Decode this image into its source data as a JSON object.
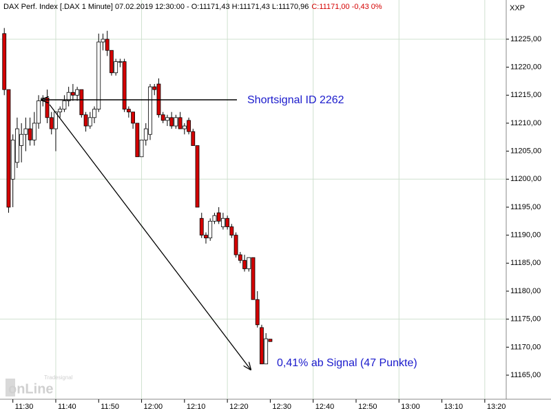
{
  "chart_data": {
    "type": "candlestick",
    "title": "DAX Perf. Index [.DAX 1 Minute] 07.02.2019 12:30:00 - O:11171,43 H:11171,43 L:11170,96",
    "title_close": "C:11171,00 -0,43 0%",
    "corner_label": "XXP",
    "watermark": "Tradesignal",
    "watermark_logo": "onLine",
    "annotations": [
      "Shortsignal ID 2262",
      "0,41% ab Signal (47 Punkte)"
    ],
    "grid": true,
    "up_color": "#ffffff",
    "down_color": "#d40000",
    "x": [
      "11:28",
      "11:29",
      "11:30",
      "11:31",
      "11:32",
      "11:33",
      "11:34",
      "11:35",
      "11:36",
      "11:37",
      "11:38",
      "11:39",
      "11:40",
      "11:41",
      "11:42",
      "11:43",
      "11:44",
      "11:45",
      "11:46",
      "11:47",
      "11:48",
      "11:49",
      "11:50",
      "11:51",
      "11:52",
      "11:53",
      "11:54",
      "11:55",
      "11:56",
      "11:57",
      "11:58",
      "11:59",
      "12:00",
      "12:01",
      "12:02",
      "12:03",
      "12:04",
      "12:05",
      "12:06",
      "12:07",
      "12:08",
      "12:09",
      "12:10",
      "12:11",
      "12:12",
      "12:13",
      "12:14",
      "12:15",
      "12:16",
      "12:17",
      "12:18",
      "12:19",
      "12:20",
      "12:21",
      "12:22",
      "12:23",
      "12:24",
      "12:25",
      "12:26",
      "12:27",
      "12:28",
      "12:29",
      "12:30"
    ],
    "open": [
      11226,
      11216,
      11200,
      11203,
      11206,
      11208,
      11209,
      11207,
      11210,
      11214,
      11214.5,
      11211,
      11209,
      11212,
      11212.5,
      11214,
      11215.5,
      11215,
      11216,
      11211.5,
      11209.5,
      11211,
      11212.5,
      11224.5,
      11225,
      11223,
      11219,
      11221,
      11221,
      11212.5,
      11212,
      11210,
      11204,
      11207,
      11208,
      11216.5,
      11217,
      11211.5,
      11210.5,
      11211,
      11209.5,
      11211,
      11209,
      11210.5,
      11208.5,
      11206,
      11193,
      11190,
      11189.5,
      11192.5,
      11194,
      11191.5,
      11193,
      11191.5,
      11190,
      11186.5,
      11185.5,
      11184,
      11186,
      11178.5,
      11173.5,
      11167,
      11171.43
    ],
    "high": [
      11227,
      11216,
      11208,
      11211,
      11210,
      11211,
      11211,
      11212,
      11215,
      11215,
      11216,
      11212,
      11212,
      11213,
      11215,
      11216.5,
      11217,
      11216.5,
      11216,
      11212,
      11212,
      11213,
      11226,
      11226,
      11226.5,
      11223,
      11221.5,
      11221.5,
      11221.5,
      11213,
      11212,
      11210,
      11207,
      11210,
      11217,
      11217,
      11218,
      11212,
      11211.5,
      11212,
      11211.5,
      11212,
      11210,
      11211,
      11209,
      11206,
      11194,
      11190.5,
      11193,
      11194,
      11195,
      11194,
      11193.5,
      11192,
      11190.5,
      11187,
      11186.5,
      11186,
      11186,
      11180,
      11174,
      11172.5,
      11171.43
    ],
    "low": [
      11215,
      11194,
      11195,
      11202,
      11203,
      11205,
      11206,
      11206,
      11209,
      11213,
      11210,
      11208,
      11205,
      11211,
      11212,
      11213,
      11214,
      11214,
      11211,
      11208.5,
      11209,
      11210,
      11212,
      11223,
      11222,
      11218.5,
      11218.5,
      11220,
      11212,
      11211,
      11209,
      11204,
      11204,
      11206,
      11207,
      11215,
      11211,
      11210,
      11209.5,
      11209,
      11209,
      11209,
      11208,
      11208,
      11206,
      11195,
      11189.5,
      11188.5,
      11189,
      11192,
      11192,
      11191,
      11191,
      11189.5,
      11186,
      11185,
      11183.5,
      11183.5,
      11178.5,
      11173.5,
      11167,
      11167,
      11170.96
    ],
    "close": [
      11216,
      11195,
      11207,
      11209,
      11208,
      11209,
      11207,
      11210,
      11214,
      11214.5,
      11211,
      11209,
      11212,
      11212.5,
      11214,
      11215.5,
      11215,
      11216,
      11211.5,
      11209.5,
      11211,
      11212.5,
      11224.5,
      11225,
      11223,
      11219,
      11221,
      11221,
      11212.5,
      11212,
      11210,
      11204,
      11207,
      11209,
      11216.5,
      11216,
      11211.5,
      11210.5,
      11211,
      11209.5,
      11211,
      11209,
      11209.5,
      11208.5,
      11206,
      11195,
      11190,
      11189.5,
      11192.5,
      11193.5,
      11192.5,
      11193,
      11191.5,
      11190,
      11186.5,
      11185.5,
      11184,
      11186,
      11178.5,
      11174,
      11167,
      11171.5,
      11171.0
    ],
    "xlim": [
      "11:27",
      "13:25"
    ],
    "xticks": [
      "11:30",
      "11:40",
      "11:50",
      "12:00",
      "12:10",
      "12:20",
      "12:30",
      "12:40",
      "12:50",
      "13:00",
      "13:10",
      "13:20"
    ],
    "ylim": [
      11160.7,
      11232
    ],
    "yticks": [
      {
        "value": 11165,
        "label": "11165,00"
      },
      {
        "value": 11170,
        "label": "11170,00"
      },
      {
        "value": 11175,
        "label": "11175,00"
      },
      {
        "value": 11180,
        "label": "11180,00"
      },
      {
        "value": 11185,
        "label": "11185,00"
      },
      {
        "value": 11190,
        "label": "11190,00"
      },
      {
        "value": 11195,
        "label": "11195,00"
      },
      {
        "value": 11200,
        "label": "11200,00"
      },
      {
        "value": 11205,
        "label": "11205,00"
      },
      {
        "value": 11210,
        "label": "11210,00"
      },
      {
        "value": 11215,
        "label": "11215,00"
      },
      {
        "value": 11220,
        "label": "11220,00"
      },
      {
        "value": 11225,
        "label": "11225,00"
      }
    ]
  }
}
